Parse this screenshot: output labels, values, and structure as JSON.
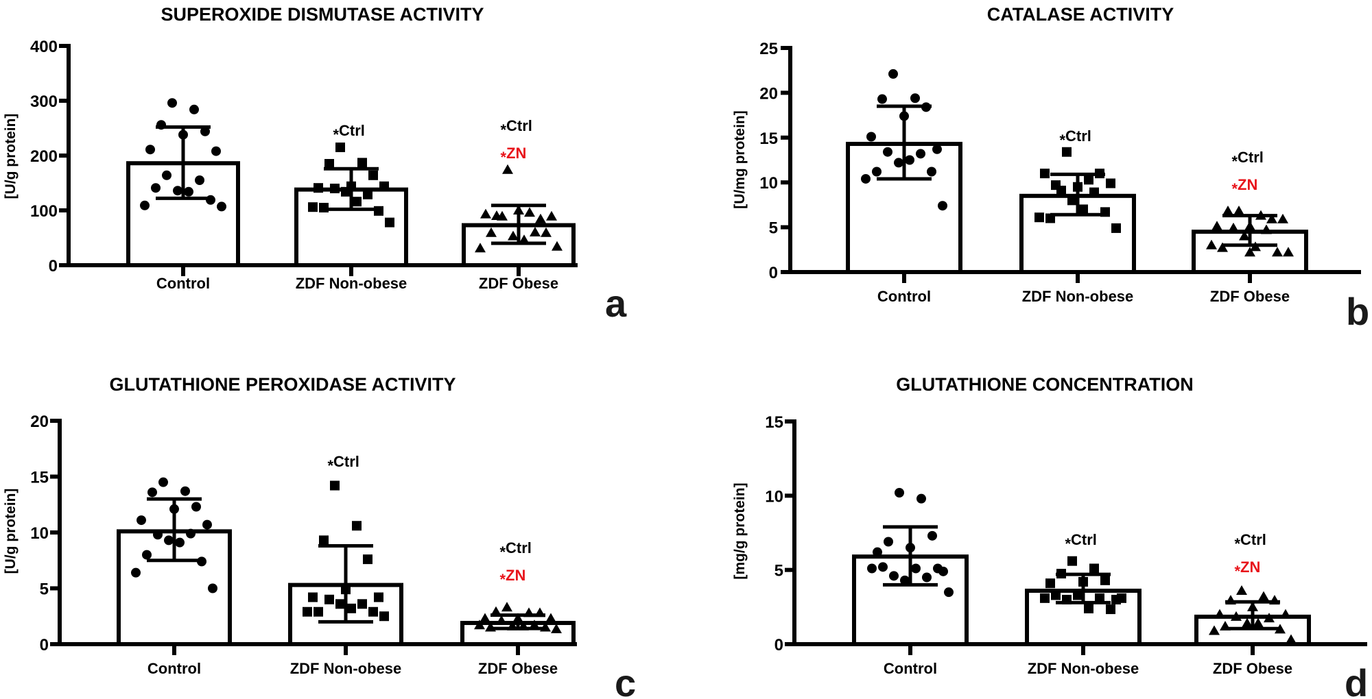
{
  "figure": {
    "panels_count": 4
  },
  "colors": {
    "ink": "#000000",
    "significance_red": "#e8141b",
    "bar_fill": "#ffffff"
  },
  "chart_data": [
    {
      "type": "bar",
      "panel_letter": "a",
      "title": "SUPEROXIDE DISMUTASE ACTIVITY",
      "xlabel": "",
      "ylabel": "[U/g protein]",
      "ylim": [
        0,
        400
      ],
      "yticks": [
        0,
        100,
        200,
        300,
        400
      ],
      "grid": false,
      "categories": [
        "Control",
        "ZDF Non-obese",
        "ZDF Obese"
      ],
      "marker": [
        "circle",
        "square",
        "triangle"
      ],
      "values": [
        186,
        138,
        73
      ],
      "sd_upper": [
        252,
        176,
        109
      ],
      "sd_lower": [
        122,
        102,
        40
      ],
      "points": [
        [
          296,
          284,
          256,
          244,
          238,
          211,
          208,
          164,
          155,
          136,
          134,
          141,
          119,
          109,
          107
        ],
        [
          215,
          187,
          185,
          164,
          144,
          141,
          144,
          140,
          129,
          134,
          116,
          105,
          99,
          106,
          78
        ],
        [
          174,
          96,
          90,
          84,
          100,
          93,
          89,
          89,
          60,
          53,
          46,
          59,
          59,
          31,
          34
        ]
      ],
      "significance": [
        [],
        [
          {
            "text": "Ctrl",
            "color": "black"
          }
        ],
        [
          {
            "text": "Ctrl",
            "color": "black"
          },
          {
            "text": "ZN",
            "color": "red"
          }
        ]
      ]
    },
    {
      "type": "bar",
      "panel_letter": "b",
      "title": "CATALASE ACTIVITY",
      "xlabel": "",
      "ylabel": "[U/mg protein]",
      "ylim": [
        0,
        25
      ],
      "yticks": [
        0,
        5,
        10,
        15,
        20,
        25
      ],
      "grid": false,
      "categories": [
        "Control",
        "ZDF Non-obese",
        "ZDF Obese"
      ],
      "marker": [
        "circle",
        "square",
        "triangle"
      ],
      "values": [
        14.3,
        8.5,
        4.5
      ],
      "sd_upper": [
        18.5,
        10.9,
        6.3
      ],
      "sd_lower": [
        10.4,
        6.4,
        3.0
      ],
      "points": [
        [
          22.1,
          19.4,
          19.3,
          18.4,
          17.4,
          15.1,
          13.7,
          13.4,
          13.2,
          12.2,
          12.5,
          11.2,
          11.2,
          10.4,
          7.4
        ],
        [
          13.4,
          10.3,
          9.7,
          11.0,
          9.5,
          11.0,
          9.9,
          9.1,
          8.9,
          8.0,
          7.0,
          6.0,
          6.7,
          6.1,
          4.9
        ],
        [
          6.8,
          6.3,
          6.8,
          5.9,
          5.1,
          5.1,
          5.9,
          4.9,
          4.7,
          4.0,
          2.8,
          2.7,
          2.2,
          3.0,
          2.2,
          2.2
        ]
      ],
      "significance": [
        [],
        [
          {
            "text": "Ctrl",
            "color": "black"
          }
        ],
        [
          {
            "text": "Ctrl",
            "color": "black"
          },
          {
            "text": "ZN",
            "color": "red"
          }
        ]
      ]
    },
    {
      "type": "bar",
      "panel_letter": "c",
      "title": "GLUTATHIONE PEROXIDASE ACTIVITY",
      "xlabel": "",
      "ylabel": "[U/g protein]",
      "ylim": [
        0,
        20
      ],
      "yticks": [
        0,
        5,
        10,
        15,
        20
      ],
      "grid": false,
      "categories": [
        "Control",
        "ZDF Non-obese",
        "ZDF Obese"
      ],
      "marker": [
        "circle",
        "square",
        "triangle"
      ],
      "values": [
        10.1,
        5.3,
        1.9
      ],
      "sd_upper": [
        13.0,
        8.8,
        2.6
      ],
      "sd_lower": [
        7.5,
        2.0,
        1.4
      ],
      "points": [
        [
          14.5,
          13.7,
          13.6,
          12.3,
          12.1,
          11.1,
          10.7,
          9.8,
          9.9,
          9.3,
          9.1,
          8.0,
          7.4,
          6.4,
          5.0
        ],
        [
          14.2,
          10.6,
          9.3,
          7.6,
          4.9,
          4.2,
          4.2,
          4.0,
          3.6,
          3.6,
          3.2,
          2.9,
          2.9,
          2.9,
          2.5
        ],
        [
          3.3,
          2.8,
          2.9,
          2.8,
          2.3,
          2.3,
          2.3,
          2.1,
          1.7,
          1.6,
          1.6,
          1.5,
          1.5,
          1.7,
          1.35
        ]
      ],
      "significance": [
        [],
        [
          {
            "text": "Ctrl",
            "color": "black"
          }
        ],
        [
          {
            "text": "Ctrl",
            "color": "black"
          },
          {
            "text": "ZN",
            "color": "red"
          }
        ]
      ]
    },
    {
      "type": "bar",
      "panel_letter": "d",
      "title": "GLUTATHIONE CONCENTRATION",
      "xlabel": "",
      "ylabel": "[mg/g protein]",
      "ylim": [
        0,
        15
      ],
      "yticks": [
        0,
        5,
        10,
        15
      ],
      "grid": false,
      "categories": [
        "Control",
        "ZDF Non-obese",
        "ZDF Obese"
      ],
      "marker": [
        "circle",
        "square",
        "triangle"
      ],
      "values": [
        5.9,
        3.6,
        1.85
      ],
      "sd_upper": [
        7.9,
        4.7,
        2.85
      ],
      "sd_lower": [
        4.0,
        2.8,
        1.05
      ],
      "points": [
        [
          10.2,
          9.8,
          6.9,
          7.3,
          6.5,
          6.2,
          4.9,
          4.6,
          4.5,
          4.3,
          5.1,
          5.2,
          5.1,
          5.1,
          3.5
        ],
        [
          5.6,
          5.1,
          4.75,
          4.3,
          4.2,
          4.1,
          3.0,
          3.0,
          3.1,
          3.3,
          2.4,
          3.3,
          2.35,
          3.1,
          3.1
        ],
        [
          3.6,
          3.2,
          2.95,
          2.95,
          2.5,
          2.0,
          2.0,
          1.85,
          1.75,
          1.4,
          1.4,
          1.2,
          1.0,
          0.9,
          0.3
        ]
      ],
      "significance": [
        [],
        [
          {
            "text": "Ctrl",
            "color": "black"
          }
        ],
        [
          {
            "text": "Ctrl",
            "color": "black"
          },
          {
            "text": "ZN",
            "color": "red"
          }
        ]
      ]
    }
  ]
}
